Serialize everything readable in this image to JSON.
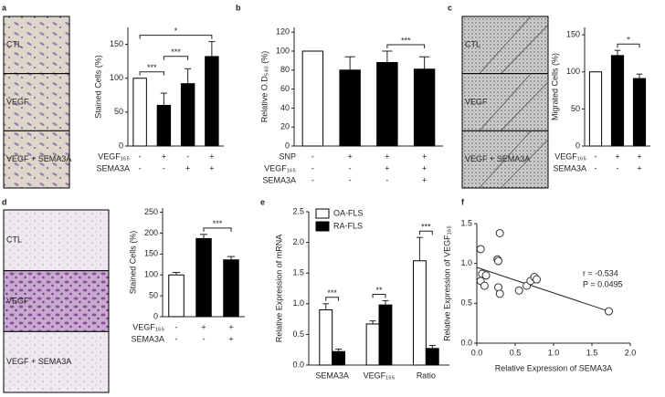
{
  "chart_data": [
    {
      "type": "bar",
      "panel_label": "a",
      "image_labels": [
        "CTL",
        "VEGF",
        "VEGF + SEMA3A"
      ],
      "ylabel": "Stained Cells (%)",
      "values": [
        100,
        60,
        92,
        132
      ],
      "errors": [
        null,
        18,
        22,
        22
      ],
      "colors": [
        "#ffffff",
        "#000000",
        "#000000",
        "#000000"
      ],
      "ylim": [
        0,
        175
      ],
      "yticks": [
        0,
        50,
        100,
        150
      ],
      "conditions": [
        {
          "name": "VEGF₁₆₅",
          "values": [
            "-",
            "+",
            "-",
            "+"
          ]
        },
        {
          "name": "SEMA3A",
          "values": [
            "-",
            "-",
            "+",
            "+"
          ]
        }
      ],
      "brackets": [
        {
          "between": [
            0,
            1
          ],
          "label": "***"
        },
        {
          "between": [
            1,
            2
          ],
          "label": "***"
        },
        {
          "between": [
            0,
            3
          ],
          "label": "*"
        }
      ]
    },
    {
      "type": "bar",
      "panel_label": "b",
      "ylabel": "Relative O.D₅₄₀ (%)",
      "values": [
        100,
        80,
        88,
        81
      ],
      "errors": [
        null,
        14,
        12,
        13
      ],
      "colors": [
        "#ffffff",
        "#000000",
        "#000000",
        "#000000"
      ],
      "ylim": [
        0,
        125
      ],
      "yticks": [
        0,
        20,
        40,
        60,
        80,
        100,
        120
      ],
      "conditions": [
        {
          "name": "SNP",
          "values": [
            "-",
            "+",
            "+",
            "+"
          ]
        },
        {
          "name": "VEGF₁₆₅",
          "values": [
            "-",
            "-",
            "+",
            "+"
          ]
        },
        {
          "name": "SEMA3A",
          "values": [
            "-",
            "-",
            "-",
            "+"
          ]
        }
      ],
      "brackets": [
        {
          "between": [
            2,
            3
          ],
          "label": "***"
        }
      ]
    },
    {
      "type": "bar",
      "panel_label": "c",
      "image_labels": [
        "CTL",
        "VEGF",
        "VEGF + SEMA3A"
      ],
      "ylabel": "Migrated Cells (%)",
      "values": [
        100,
        122,
        91
      ],
      "errors": [
        null,
        7,
        6
      ],
      "colors": [
        "#ffffff",
        "#000000",
        "#000000"
      ],
      "ylim": [
        0,
        160
      ],
      "yticks": [
        0,
        50,
        100,
        150
      ],
      "conditions": [
        {
          "name": "VEGF₁₆₅",
          "values": [
            "-",
            "+",
            "+"
          ]
        },
        {
          "name": "SEMA3A",
          "values": [
            "-",
            "-",
            "+"
          ]
        }
      ],
      "brackets": [
        {
          "between": [
            1,
            2
          ],
          "label": "*"
        }
      ]
    },
    {
      "type": "bar",
      "panel_label": "d",
      "image_labels": [
        "CTL",
        "VEGF",
        "VEGF + SEMA3A"
      ],
      "ylabel": "Stained Cells (%)",
      "values": [
        100,
        187,
        136
      ],
      "errors": [
        6,
        10,
        8
      ],
      "colors": [
        "#ffffff",
        "#000000",
        "#000000"
      ],
      "ylim": [
        0,
        260
      ],
      "yticks": [
        0,
        50,
        100,
        150,
        200,
        250
      ],
      "conditions": [
        {
          "name": "VEGF₁₆₅",
          "values": [
            "-",
            "+",
            "+"
          ]
        },
        {
          "name": "SEMA3A",
          "values": [
            "-",
            "-",
            "+"
          ]
        }
      ],
      "brackets": [
        {
          "between": [
            1,
            2
          ],
          "label": "***"
        }
      ]
    },
    {
      "type": "bar",
      "panel_label": "e",
      "ylabel": "Relative Expression of mRNA",
      "categories": [
        "SEMA3A",
        "VEGF₁₆₅",
        "Ratio"
      ],
      "series": [
        {
          "name": "OA-FLS",
          "color": "#ffffff",
          "values": [
            0.9,
            0.67,
            1.7
          ],
          "errors": [
            0.1,
            0.05,
            0.38
          ]
        },
        {
          "name": "RA-FLS",
          "color": "#000000",
          "values": [
            0.22,
            0.98,
            0.27
          ],
          "errors": [
            0.04,
            0.07,
            0.05
          ]
        }
      ],
      "ylim": [
        0,
        2.5
      ],
      "yticks": [
        {
          "value": 0,
          "label": "0.0"
        },
        0.5,
        {
          "value": 1,
          "label": "1.0"
        },
        1.5,
        {
          "value": 2,
          "label": "2.0"
        },
        2.5
      ],
      "legend": "upper left",
      "brackets": [
        {
          "category": 0,
          "label": "***"
        },
        {
          "category": 1,
          "label": "**"
        },
        {
          "category": 2,
          "label": "***"
        }
      ]
    },
    {
      "type": "scatter",
      "panel_label": "f",
      "xlabel": "Relative Expression of SEMA3A",
      "ylabel": "Relative Expression of VEGF₁₆₅",
      "x": [
        0.05,
        0.07,
        0.05,
        0.1,
        0.12,
        0.27,
        0.28,
        0.3,
        0.28,
        0.3,
        0.55,
        0.65,
        0.7,
        0.75,
        0.78,
        1.72
      ],
      "y": [
        1.18,
        0.87,
        0.78,
        0.72,
        0.85,
        1.05,
        1.03,
        1.38,
        0.7,
        0.62,
        0.66,
        0.72,
        0.78,
        0.83,
        0.8,
        0.4
      ],
      "trend_line": {
        "x": [
          0,
          1.72
        ],
        "y": [
          0.95,
          0.4
        ]
      },
      "xlim": [
        0,
        2
      ],
      "ylim": [
        0,
        1.5
      ],
      "xticks": [
        {
          "value": 0,
          "label": "0.0"
        },
        0.5,
        {
          "value": 1,
          "label": "1.0"
        },
        1.5,
        {
          "value": 2,
          "label": "2.0"
        }
      ],
      "yticks": [
        {
          "value": 0,
          "label": "0.0"
        },
        0.5,
        {
          "value": 1,
          "label": "1.0"
        },
        1.5
      ],
      "annotations": [
        "r = -0.534",
        "P = 0.0495"
      ]
    }
  ]
}
